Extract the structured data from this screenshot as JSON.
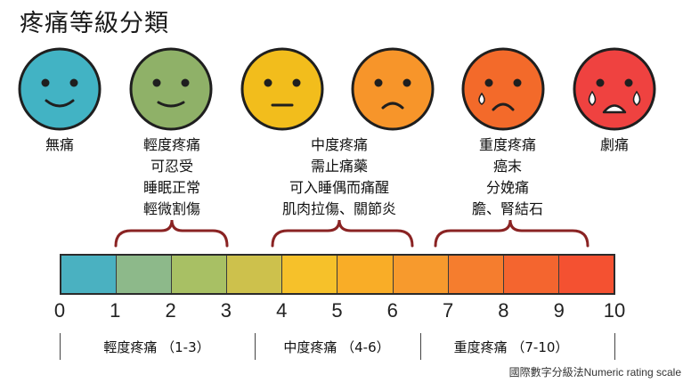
{
  "title": "疼痛等級分類",
  "faces": [
    {
      "name": "no-pain",
      "color": "#42b3c4",
      "mood": "smile"
    },
    {
      "name": "mild-pain",
      "color": "#8fb168",
      "mood": "smile"
    },
    {
      "name": "discomfort",
      "color": "#f2bd1c",
      "mood": "neutral"
    },
    {
      "name": "moderate-pain",
      "color": "#f7952a",
      "mood": "frown"
    },
    {
      "name": "severe-pain",
      "color": "#f36a2a",
      "mood": "tear"
    },
    {
      "name": "worst-pain",
      "color": "#ef4240",
      "mood": "cry"
    }
  ],
  "descriptions": {
    "none": [
      "無痛"
    ],
    "mild": [
      "輕度疼痛",
      "可忍受",
      "睡眠正常",
      "輕微割傷"
    ],
    "moderate": [
      "中度疼痛",
      "需止痛藥",
      "可入睡偶而痛醒",
      "肌肉拉傷、關節炎"
    ],
    "severe": [
      "重度疼痛",
      "癌末",
      "分娩痛",
      "膽、腎結石"
    ],
    "worst": [
      "劇痛"
    ]
  },
  "scale": {
    "ticks": [
      "0",
      "1",
      "2",
      "3",
      "4",
      "5",
      "6",
      "7",
      "8",
      "9",
      "10"
    ],
    "colors": [
      "#4ab1c1",
      "#8db98a",
      "#a8c064",
      "#cdc14c",
      "#f6c12a",
      "#f9ad27",
      "#f79a2d",
      "#f57d2e",
      "#f4652f",
      "#f45131"
    ]
  },
  "ranges": [
    {
      "label": "輕度疼痛 （1-3）"
    },
    {
      "label": "中度疼痛 （4-6）"
    },
    {
      "label": "重度疼痛 （7-10）"
    }
  ],
  "footer": "國際數字分級法Numeric rating scale"
}
